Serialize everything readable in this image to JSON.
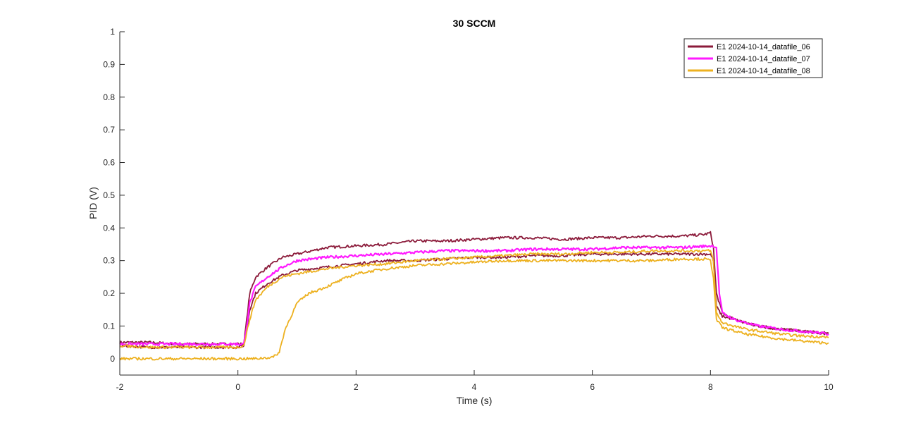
{
  "chart_data": {
    "type": "line",
    "title": "30 SCCM",
    "xlabel": "Time (s)",
    "ylabel": "PID (V)",
    "xlim": [
      -2,
      10
    ],
    "ylim": [
      -0.05,
      1
    ],
    "xticks": [
      -2,
      0,
      2,
      4,
      6,
      8,
      10
    ],
    "xtick_labels": [
      "-2",
      "0",
      "2",
      "4",
      "6",
      "8",
      "10"
    ],
    "yticks": [
      0,
      0.1,
      0.2,
      0.3,
      0.4,
      0.5,
      0.6,
      0.7,
      0.8,
      0.9,
      1
    ],
    "ytick_labels": [
      "0",
      "0.1",
      "0.2",
      "0.3",
      "0.4",
      "0.5",
      "0.6",
      "0.7",
      "0.8",
      "0.9",
      "1"
    ],
    "grid": false,
    "legend_position": "top-right",
    "series": [
      {
        "name": "E1 2024-10-14_datafile_06",
        "color": "#8b1a3a",
        "runs": [
          {
            "x": [
              -2,
              -1.5,
              -1,
              -0.5,
              0,
              0.1,
              0.15,
              0.2,
              0.3,
              0.5,
              0.75,
              1,
              1.5,
              2,
              2.5,
              3,
              3.5,
              4,
              4.5,
              5,
              5.5,
              6,
              6.5,
              7,
              7.5,
              7.9,
              8.0,
              8.05,
              8.1,
              8.2,
              8.4,
              8.6,
              8.8,
              9,
              9.2,
              9.5,
              9.8,
              10
            ],
            "y": [
              0.05,
              0.05,
              0.045,
              0.045,
              0.045,
              0.045,
              0.12,
              0.2,
              0.25,
              0.28,
              0.31,
              0.32,
              0.34,
              0.345,
              0.35,
              0.36,
              0.36,
              0.365,
              0.37,
              0.37,
              0.365,
              0.37,
              0.37,
              0.375,
              0.375,
              0.38,
              0.385,
              0.34,
              0.2,
              0.14,
              0.12,
              0.11,
              0.1,
              0.095,
              0.09,
              0.085,
              0.08,
              0.078
            ]
          },
          {
            "x": [
              -2,
              -1.5,
              -1,
              -0.5,
              0,
              0.1,
              0.15,
              0.2,
              0.3,
              0.5,
              0.75,
              1,
              1.5,
              2,
              2.5,
              3,
              3.5,
              4,
              4.5,
              5,
              5.5,
              6,
              6.5,
              7,
              7.5,
              7.9,
              8.0,
              8.05,
              8.1,
              8.2,
              8.4,
              8.6,
              8.8,
              9,
              9.2,
              9.5,
              9.8,
              10
            ],
            "y": [
              0.04,
              0.035,
              0.035,
              0.035,
              0.035,
              0.04,
              0.09,
              0.15,
              0.2,
              0.23,
              0.255,
              0.27,
              0.28,
              0.29,
              0.3,
              0.3,
              0.305,
              0.31,
              0.31,
              0.315,
              0.315,
              0.32,
              0.32,
              0.32,
              0.32,
              0.32,
              0.32,
              0.3,
              0.16,
              0.13,
              0.12,
              0.11,
              0.1,
              0.095,
              0.09,
              0.085,
              0.08,
              0.075
            ]
          }
        ]
      },
      {
        "name": "E1 2024-10-14_datafile_07",
        "color": "#ff1aff",
        "runs": [
          {
            "x": [
              -2,
              -1.5,
              -1,
              -0.5,
              0,
              0.1,
              0.15,
              0.2,
              0.3,
              0.5,
              0.75,
              1,
              1.5,
              2,
              2.5,
              3,
              3.5,
              4,
              4.5,
              5,
              5.5,
              6,
              6.5,
              7,
              7.5,
              8.0,
              8.05,
              8.1,
              8.15,
              8.2,
              8.4,
              8.6,
              8.8,
              9,
              9.2,
              9.5,
              9.8,
              10
            ],
            "y": [
              0.045,
              0.045,
              0.045,
              0.045,
              0.045,
              0.045,
              0.1,
              0.17,
              0.22,
              0.25,
              0.28,
              0.3,
              0.31,
              0.315,
              0.32,
              0.325,
              0.33,
              0.33,
              0.33,
              0.335,
              0.335,
              0.335,
              0.34,
              0.34,
              0.34,
              0.345,
              0.345,
              0.34,
              0.2,
              0.14,
              0.12,
              0.11,
              0.1,
              0.095,
              0.09,
              0.085,
              0.08,
              0.075
            ]
          }
        ]
      },
      {
        "name": "E1 2024-10-14_datafile_08",
        "color": "#edb120",
        "runs": [
          {
            "x": [
              -2,
              -1.5,
              -1,
              -0.5,
              0,
              0.1,
              0.2,
              0.3,
              0.5,
              0.75,
              1,
              1.5,
              2,
              2.5,
              3,
              3.5,
              4,
              4.5,
              5,
              5.5,
              6,
              6.5,
              7,
              7.5,
              7.9,
              8.0,
              8.05,
              8.1,
              8.2,
              8.4,
              8.6,
              8.8,
              9,
              9.2,
              9.5,
              9.8,
              10
            ],
            "y": [
              0.04,
              0.035,
              0.035,
              0.035,
              0.035,
              0.04,
              0.12,
              0.18,
              0.22,
              0.25,
              0.26,
              0.275,
              0.285,
              0.29,
              0.3,
              0.305,
              0.31,
              0.315,
              0.32,
              0.32,
              0.325,
              0.325,
              0.33,
              0.33,
              0.33,
              0.33,
              0.3,
              0.14,
              0.11,
              0.1,
              0.09,
              0.085,
              0.08,
              0.075,
              0.07,
              0.068,
              0.065
            ]
          },
          {
            "x": [
              -2,
              -1.5,
              -1,
              -0.5,
              0,
              0.3,
              0.6,
              0.7,
              0.8,
              0.9,
              1,
              1.2,
              1.5,
              1.8,
              2,
              2.5,
              3,
              3.5,
              4,
              4.5,
              5,
              5.5,
              6,
              6.5,
              7,
              7.5,
              7.9,
              8.0,
              8.05,
              8.1,
              8.2,
              8.4,
              8.6,
              8.8,
              9,
              9.2,
              9.5,
              9.8,
              10
            ],
            "y": [
              0.0,
              0.0,
              0.0,
              0.0,
              0.0,
              0.0,
              0.005,
              0.02,
              0.09,
              0.13,
              0.17,
              0.2,
              0.22,
              0.245,
              0.26,
              0.275,
              0.285,
              0.29,
              0.295,
              0.3,
              0.3,
              0.3,
              0.3,
              0.3,
              0.3,
              0.305,
              0.305,
              0.3,
              0.25,
              0.12,
              0.095,
              0.085,
              0.075,
              0.07,
              0.065,
              0.06,
              0.055,
              0.05,
              0.048
            ]
          }
        ]
      }
    ]
  }
}
